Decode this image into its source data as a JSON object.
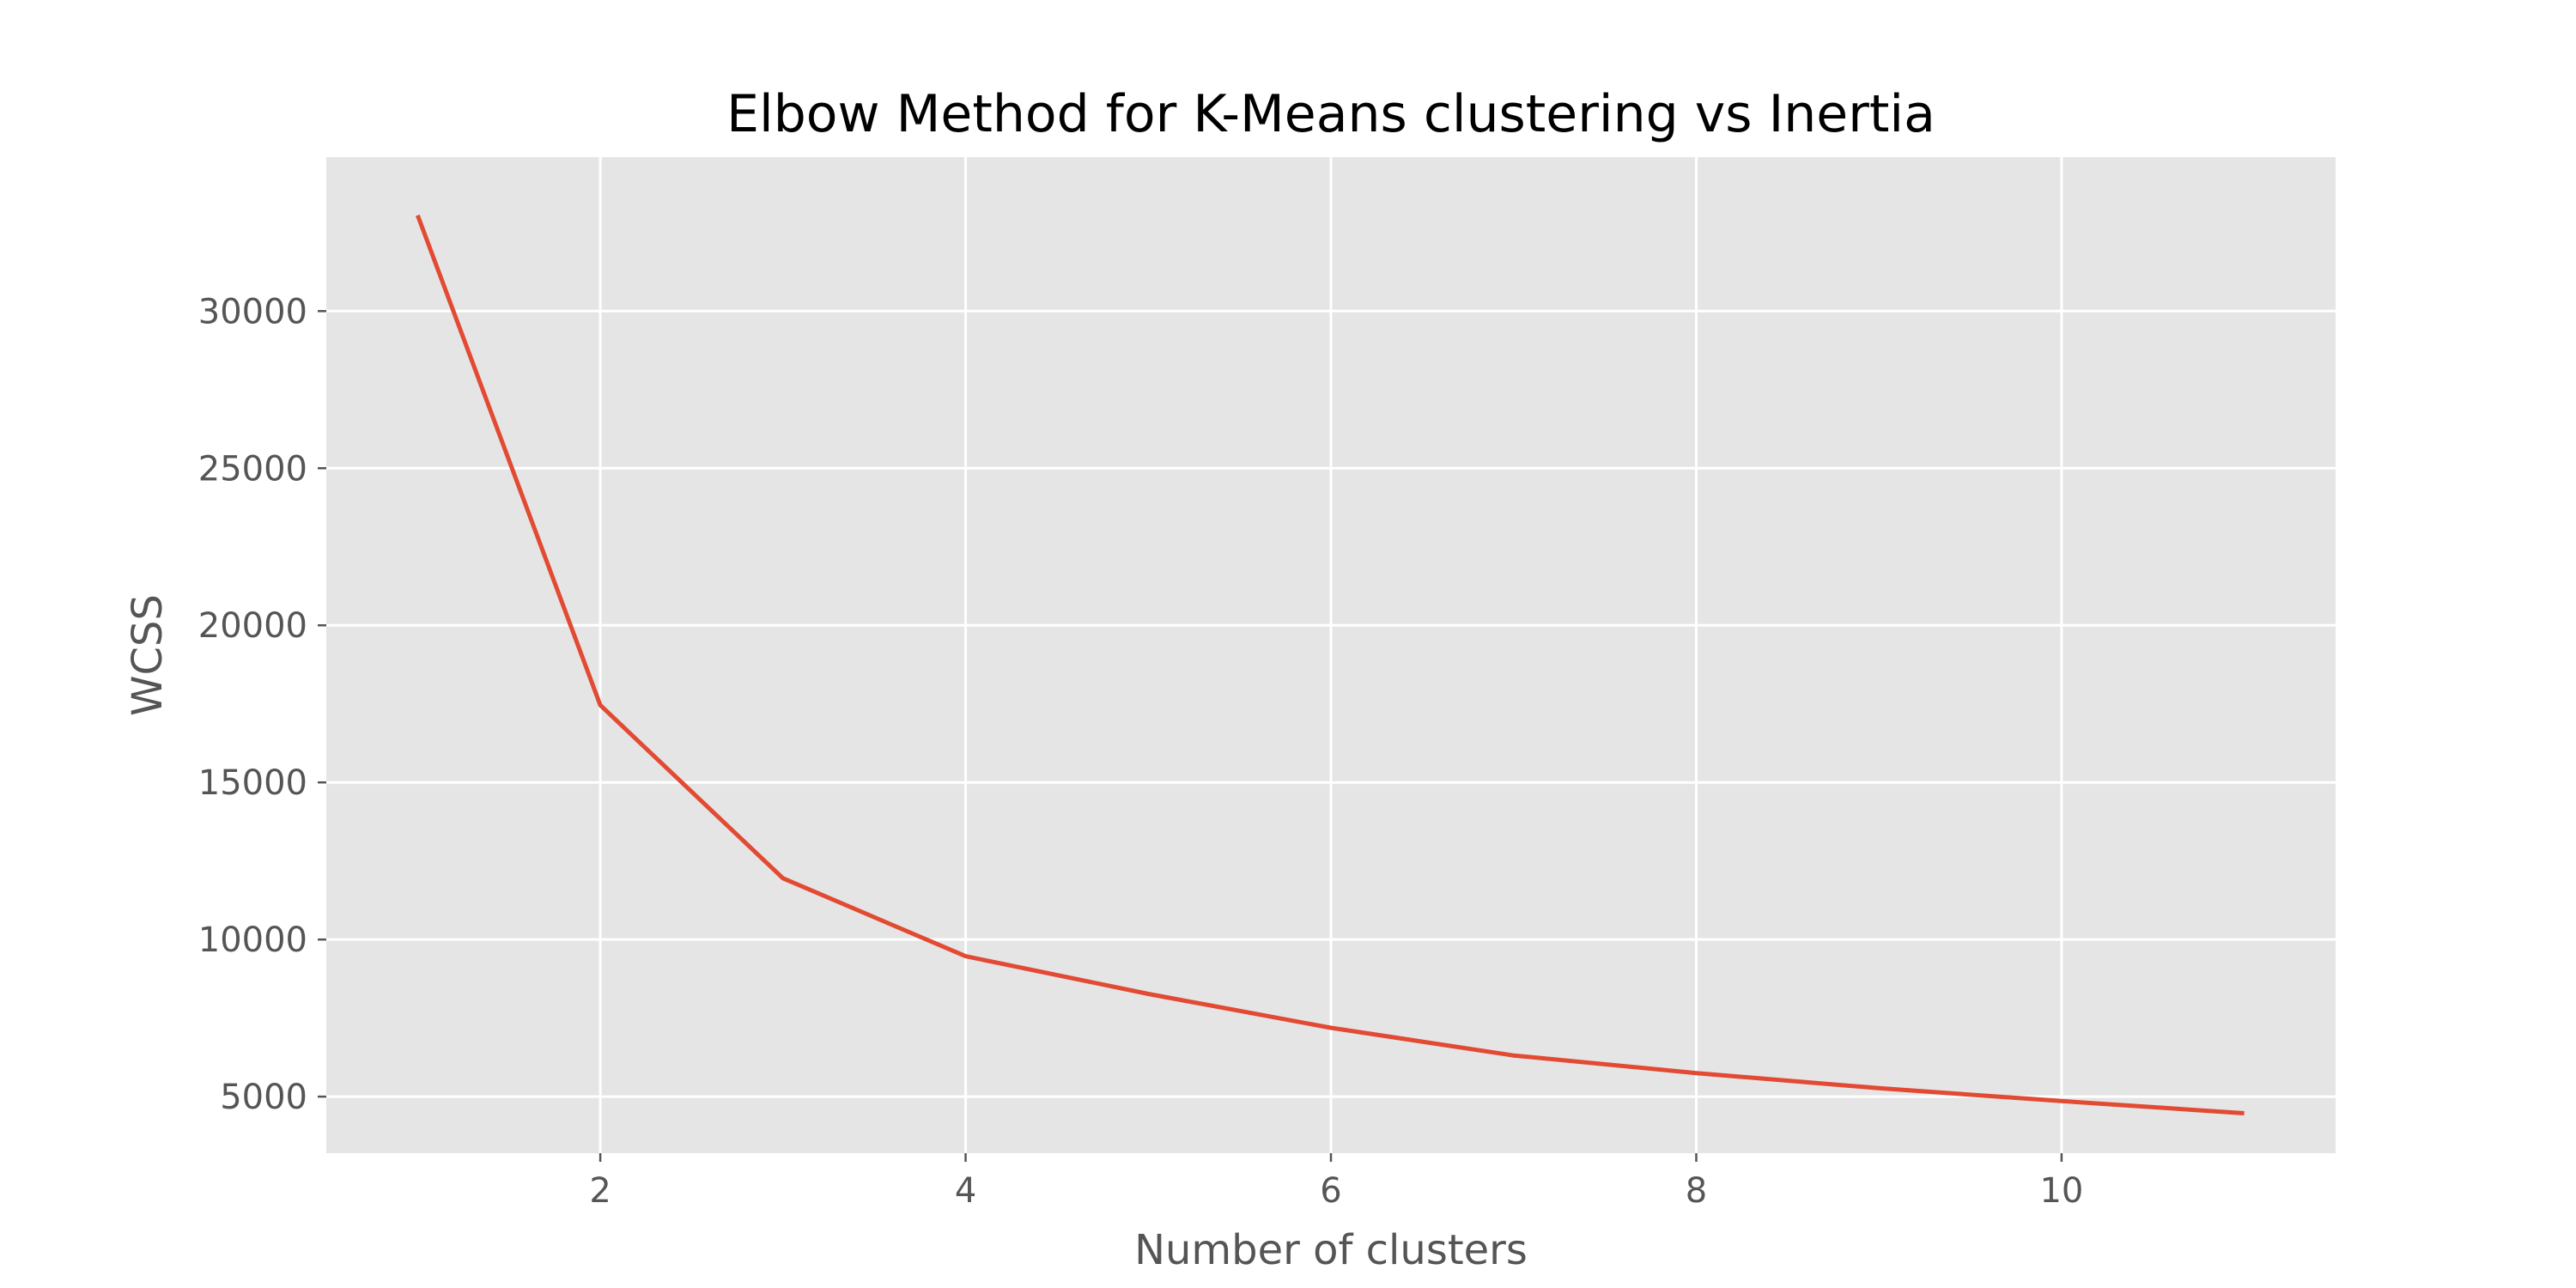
{
  "chart_data": {
    "type": "line",
    "title": "Elbow Method for K-Means clustering vs Inertia",
    "xlabel": "Number of clusters",
    "ylabel": "WCSS",
    "x": [
      1,
      2,
      3,
      4,
      5,
      6,
      7,
      8,
      9,
      10,
      11
    ],
    "series": [
      {
        "values": [
          33050,
          17460,
          11950,
          9470,
          8270,
          7190,
          6310,
          5750,
          5270,
          4860,
          4470
        ],
        "color": "#E24A33"
      }
    ],
    "xlim": [
      0.5,
      11.5
    ],
    "ylim": [
      3200,
      34900
    ],
    "xticks": [
      2,
      4,
      6,
      8,
      10
    ],
    "yticks": [
      5000,
      10000,
      15000,
      20000,
      25000,
      30000
    ],
    "grid": true,
    "plot_background": "#E5E5E5",
    "grid_color": "#FFFFFF",
    "style": "ggplot"
  }
}
